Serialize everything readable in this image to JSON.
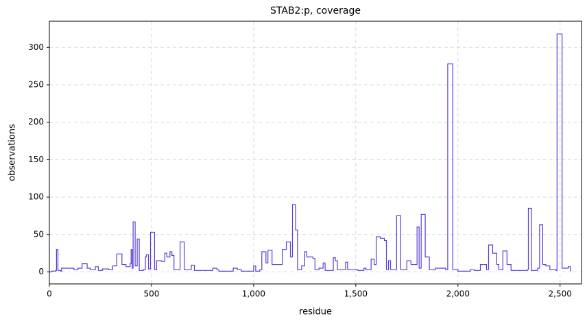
{
  "chart_data": {
    "type": "step",
    "title": "STAB2:p, coverage",
    "xlabel": "residue",
    "ylabel": "observations",
    "xlim": [
      0,
      2605
    ],
    "ylim": [
      -16,
      335
    ],
    "xticks": [
      0,
      500,
      {
        "value": 1000,
        "label": "1,000"
      },
      {
        "value": 1500,
        "label": "1,500"
      },
      {
        "value": 2000,
        "label": "2,000"
      },
      {
        "value": 2500,
        "label": "2,500"
      }
    ],
    "yticks": [
      0,
      50,
      100,
      150,
      200,
      250,
      300
    ],
    "grid": true,
    "series": [
      {
        "color": "#5b3cd6",
        "x": [
          0,
          10,
          30,
          35,
          42,
          55,
          60,
          100,
          120,
          140,
          160,
          185,
          200,
          225,
          240,
          260,
          290,
          310,
          330,
          355,
          375,
          395,
          400,
          405,
          410,
          420,
          430,
          440,
          460,
          470,
          475,
          485,
          495,
          515,
          525,
          550,
          565,
          575,
          590,
          600,
          610,
          640,
          660,
          690,
          695,
          710,
          800,
          820,
          830,
          900,
          920,
          940,
          1000,
          1010,
          1030,
          1040,
          1060,
          1070,
          1090,
          1140,
          1160,
          1180,
          1190,
          1205,
          1215,
          1235,
          1250,
          1260,
          1290,
          1300,
          1320,
          1340,
          1350,
          1390,
          1400,
          1410,
          1450,
          1460,
          1510,
          1540,
          1550,
          1575,
          1590,
          1600,
          1620,
          1640,
          1650,
          1660,
          1670,
          1700,
          1720,
          1750,
          1770,
          1800,
          1810,
          1820,
          1840,
          1860,
          1890,
          1940,
          1950,
          1975,
          2000,
          2040,
          2060,
          2080,
          2110,
          2140,
          2150,
          2170,
          2190,
          2200,
          2220,
          2240,
          2260,
          2340,
          2345,
          2360,
          2390,
          2400,
          2415,
          2430,
          2450,
          2480,
          2485,
          2510,
          2540,
          2550
        ],
        "values": [
          0,
          1,
          2,
          30,
          2,
          1,
          5,
          5,
          3,
          5,
          11,
          5,
          3,
          7,
          2,
          4,
          3,
          8,
          24,
          10,
          7,
          11,
          30,
          5,
          67,
          8,
          44,
          2,
          3,
          20,
          23,
          4,
          53,
          3,
          15,
          14,
          25,
          20,
          27,
          22,
          3,
          40,
          3,
          3,
          9,
          2,
          5,
          3,
          1,
          5,
          3,
          1,
          8,
          1,
          3,
          27,
          12,
          29,
          10,
          30,
          40,
          20,
          90,
          56,
          3,
          8,
          27,
          20,
          18,
          3,
          5,
          12,
          2,
          19,
          15,
          3,
          13,
          3,
          2,
          5,
          3,
          17,
          10,
          47,
          45,
          42,
          3,
          15,
          3,
          75,
          3,
          15,
          10,
          60,
          5,
          77,
          20,
          3,
          5,
          3,
          278,
          3,
          1,
          1,
          3,
          2,
          10,
          3,
          36,
          25,
          10,
          3,
          28,
          10,
          2,
          3,
          85,
          2,
          5,
          63,
          10,
          8,
          3,
          2,
          318,
          5,
          7,
          1
        ]
      }
    ]
  }
}
